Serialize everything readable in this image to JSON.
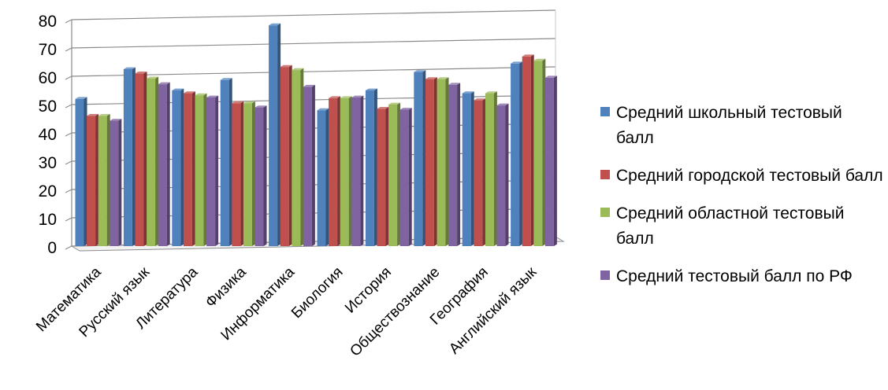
{
  "chart_data": {
    "type": "bar",
    "categories": [
      "Математика",
      "Русский язык",
      "Литература",
      "Физика",
      "Информатика",
      "Биология",
      "История",
      "Обществознание",
      "География",
      "Английский язык"
    ],
    "series": [
      {
        "name": "Средний школьный тестовый балл",
        "color": "#4F81BD",
        "values": [
          52,
          62.5,
          55,
          58.7,
          78,
          48,
          55,
          61.5,
          54,
          64.5
        ]
      },
      {
        "name": "Средний городской тестовый балл",
        "color": "#C0504D",
        "values": [
          46,
          61,
          54,
          50.5,
          63.3,
          52.3,
          48.5,
          59,
          51.5,
          67
        ]
      },
      {
        "name": "Средний областной тестовый балл",
        "color": "#9BBB59",
        "values": [
          46,
          59.2,
          53.3,
          50.5,
          62.2,
          52.3,
          50,
          59,
          54,
          65.5
        ]
      },
      {
        "name": "Средний тестовый балл по РФ",
        "color": "#8064A2",
        "values": [
          44.3,
          57.2,
          52.5,
          49,
          56.3,
          52.5,
          48.2,
          57,
          49.7,
          59.5
        ]
      }
    ],
    "yticks": [
      "0",
      "10",
      "20",
      "30",
      "40",
      "50",
      "60",
      "70",
      "80"
    ],
    "ylim": [
      0,
      80
    ],
    "grid": true,
    "legend_position": "right",
    "title": "",
    "xlabel": "",
    "ylabel": ""
  }
}
